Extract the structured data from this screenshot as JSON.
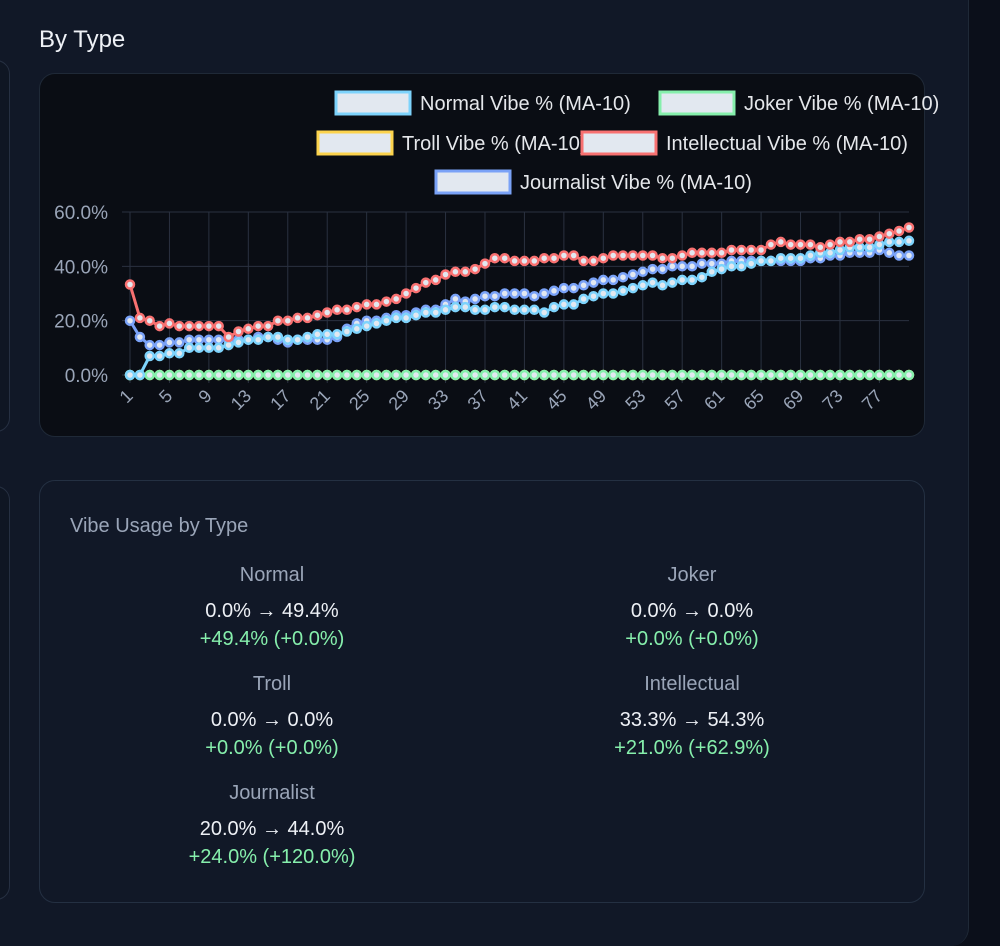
{
  "section_title": "By Type",
  "chart_data": {
    "type": "line",
    "x": [
      1,
      2,
      3,
      4,
      5,
      6,
      7,
      8,
      9,
      10,
      11,
      12,
      13,
      14,
      15,
      16,
      17,
      18,
      19,
      20,
      21,
      22,
      23,
      24,
      25,
      26,
      27,
      28,
      29,
      30,
      31,
      32,
      33,
      34,
      35,
      36,
      37,
      38,
      39,
      40,
      41,
      42,
      43,
      44,
      45,
      46,
      47,
      48,
      49,
      50,
      51,
      52,
      53,
      54,
      55,
      56,
      57,
      58,
      59,
      60,
      61,
      62,
      63,
      64,
      65,
      66,
      67,
      68,
      69,
      70,
      71,
      72,
      73,
      74,
      75,
      76,
      77,
      78,
      79,
      80
    ],
    "x_tick_labels": [
      "1",
      "5",
      "9",
      "13",
      "17",
      "21",
      "25",
      "29",
      "33",
      "37",
      "41",
      "45",
      "49",
      "53",
      "57",
      "61",
      "65",
      "69",
      "73",
      "77"
    ],
    "y_tick_labels": [
      "60.0%",
      "40.0%",
      "20.0%",
      "0.0%"
    ],
    "ylim": [
      0,
      60
    ],
    "grid": true,
    "legend_position": "top",
    "series": [
      {
        "name": "Normal Vibe % (MA-10)",
        "color": "#7dd3fc",
        "fill": "#e2e8f0",
        "values": [
          0,
          0,
          7,
          7,
          8,
          8,
          10,
          10,
          10,
          10,
          11,
          12,
          13,
          13,
          14,
          14,
          13,
          13,
          14,
          15,
          15,
          15,
          16,
          17,
          18,
          19,
          20,
          21,
          21,
          22,
          23,
          23,
          24,
          25,
          25,
          24,
          24,
          25,
          25,
          24,
          24,
          24,
          23,
          25,
          26,
          26,
          28,
          29,
          30,
          30,
          31,
          32,
          33,
          34,
          33,
          34,
          35,
          35,
          36,
          38,
          39,
          40,
          40,
          41,
          42,
          42,
          43,
          43,
          43,
          44,
          45,
          45,
          46,
          47,
          47,
          47,
          48,
          49,
          49,
          49.4
        ]
      },
      {
        "name": "Joker Vibe % (MA-10)",
        "color": "#86efac",
        "fill": "#e2e8f0",
        "values": [
          0,
          0,
          0,
          0,
          0,
          0,
          0,
          0,
          0,
          0,
          0,
          0,
          0,
          0,
          0,
          0,
          0,
          0,
          0,
          0,
          0,
          0,
          0,
          0,
          0,
          0,
          0,
          0,
          0,
          0,
          0,
          0,
          0,
          0,
          0,
          0,
          0,
          0,
          0,
          0,
          0,
          0,
          0,
          0,
          0,
          0,
          0,
          0,
          0,
          0,
          0,
          0,
          0,
          0,
          0,
          0,
          0,
          0,
          0,
          0,
          0,
          0,
          0,
          0,
          0,
          0,
          0,
          0,
          0,
          0,
          0,
          0,
          0,
          0,
          0,
          0,
          0,
          0,
          0,
          0
        ]
      },
      {
        "name": "Troll Vibe % (MA-10)",
        "color": "#fcd34d",
        "fill": "#e2e8f0",
        "values": [
          0,
          0,
          0,
          0,
          0,
          0,
          0,
          0,
          0,
          0,
          0,
          0,
          0,
          0,
          0,
          0,
          0,
          0,
          0,
          0,
          0,
          0,
          0,
          0,
          0,
          0,
          0,
          0,
          0,
          0,
          0,
          0,
          0,
          0,
          0,
          0,
          0,
          0,
          0,
          0,
          0,
          0,
          0,
          0,
          0,
          0,
          0,
          0,
          0,
          0,
          0,
          0,
          0,
          0,
          0,
          0,
          0,
          0,
          0,
          0,
          0,
          0,
          0,
          0,
          0,
          0,
          0,
          0,
          0,
          0,
          0,
          0,
          0,
          0,
          0,
          0,
          0,
          0,
          0,
          0
        ]
      },
      {
        "name": "Intellectual Vibe % (MA-10)",
        "color": "#f87171",
        "fill": "#e2e8f0",
        "values": [
          33.3,
          21,
          20,
          18,
          19,
          18,
          18,
          18,
          18,
          18,
          14,
          16,
          17,
          18,
          18,
          20,
          20,
          21,
          21,
          22,
          23,
          24,
          24,
          25,
          26,
          26,
          27,
          28,
          30,
          32,
          34,
          35,
          37,
          38,
          38,
          39,
          41,
          43,
          43,
          42,
          42,
          42,
          43,
          43,
          44,
          44,
          42,
          42,
          43,
          44,
          44,
          44,
          44,
          44,
          43,
          43,
          44,
          45,
          45,
          45,
          45,
          46,
          46,
          46,
          46,
          48,
          49,
          48,
          48,
          48,
          47,
          48,
          49,
          49,
          50,
          50,
          51,
          52,
          53,
          54.3
        ]
      },
      {
        "name": "Journalist Vibe % (MA-10)",
        "color": "#7aa2f7",
        "fill": "#e2e8f0",
        "values": [
          20,
          14,
          11,
          11,
          12,
          12,
          13,
          13,
          13,
          13,
          13,
          13,
          13,
          14,
          14,
          13,
          12,
          13,
          13,
          13,
          13,
          14,
          17,
          19,
          20,
          20,
          21,
          22,
          22,
          23,
          24,
          24,
          26,
          28,
          27,
          28,
          29,
          29,
          30,
          30,
          30,
          29,
          30,
          31,
          32,
          32,
          33,
          34,
          35,
          35,
          36,
          37,
          38,
          39,
          39,
          40,
          40,
          40,
          41,
          41,
          41,
          42,
          42,
          42,
          42,
          42,
          42,
          42,
          42,
          43,
          43,
          44,
          44,
          45,
          45,
          45,
          46,
          45,
          44,
          44
        ]
      }
    ]
  },
  "stats": {
    "title": "Vibe Usage by Type",
    "items": [
      {
        "name": "Normal",
        "range": "0.0% → 49.4%",
        "delta": "+49.4% (+0.0%)"
      },
      {
        "name": "Joker",
        "range": "0.0% → 0.0%",
        "delta": "+0.0% (+0.0%)"
      },
      {
        "name": "Troll",
        "range": "0.0% → 0.0%",
        "delta": "+0.0% (+0.0%)"
      },
      {
        "name": "Intellectual",
        "range": "33.3% → 54.3%",
        "delta": "+21.0% (+62.9%)"
      },
      {
        "name": "Journalist",
        "range": "20.0% → 44.0%",
        "delta": "+24.0% (+120.0%)"
      }
    ]
  }
}
